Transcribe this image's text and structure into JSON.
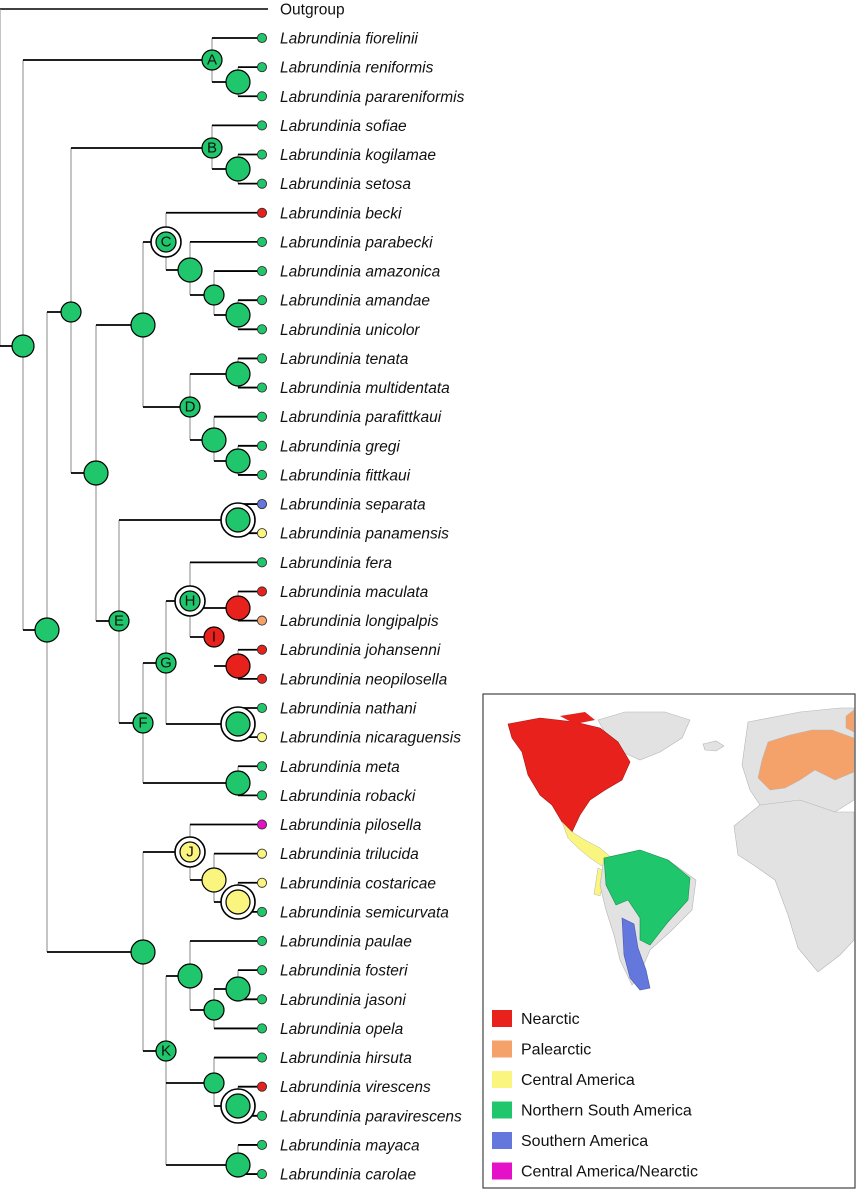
{
  "outgroup": "Outgroup",
  "taxa": [
    {
      "name": "Labrundinia fiorelinii",
      "region": "nsa"
    },
    {
      "name": "Labrundinia reniformis",
      "region": "nsa"
    },
    {
      "name": "Labrundinia parareniformis",
      "region": "nsa"
    },
    {
      "name": "Labrundinia sofiae",
      "region": "nsa"
    },
    {
      "name": "Labrundinia kogilamae",
      "region": "nsa"
    },
    {
      "name": "Labrundinia setosa",
      "region": "nsa"
    },
    {
      "name": "Labrundinia becki",
      "region": "nearctic"
    },
    {
      "name": "Labrundinia parabecki",
      "region": "nsa"
    },
    {
      "name": "Labrundinia amazonica",
      "region": "nsa"
    },
    {
      "name": "Labrundinia amandae",
      "region": "nsa"
    },
    {
      "name": "Labrundinia unicolor",
      "region": "nsa"
    },
    {
      "name": "Labrundinia tenata",
      "region": "nsa"
    },
    {
      "name": "Labrundinia multidentata",
      "region": "nsa"
    },
    {
      "name": "Labrundinia parafittkaui",
      "region": "nsa"
    },
    {
      "name": "Labrundinia gregi",
      "region": "nsa"
    },
    {
      "name": "Labrundinia fittkaui",
      "region": "nsa"
    },
    {
      "name": "Labrundinia separata",
      "region": "southern"
    },
    {
      "name": "Labrundinia panamensis",
      "region": "central"
    },
    {
      "name": "Labrundinia fera",
      "region": "nsa"
    },
    {
      "name": "Labrundinia maculata",
      "region": "nearctic"
    },
    {
      "name": "Labrundinia longipalpis",
      "region": "palearctic"
    },
    {
      "name": "Labrundinia johansenni",
      "region": "nearctic"
    },
    {
      "name": "Labrundinia neopilosella",
      "region": "nearctic"
    },
    {
      "name": "Labrundinia nathani",
      "region": "nsa"
    },
    {
      "name": "Labrundinia nicaraguensis",
      "region": "central"
    },
    {
      "name": "Labrundinia meta",
      "region": "nsa"
    },
    {
      "name": "Labrundinia robacki",
      "region": "nsa"
    },
    {
      "name": "Labrundinia pilosella",
      "region": "cana"
    },
    {
      "name": "Labrundinia trilucida",
      "region": "central"
    },
    {
      "name": "Labrundinia costaricae",
      "region": "central"
    },
    {
      "name": "Labrundinia semicurvata",
      "region": "nsa"
    },
    {
      "name": "Labrundinia paulae",
      "region": "nsa"
    },
    {
      "name": "Labrundinia fosteri",
      "region": "nsa"
    },
    {
      "name": "Labrundinia jasoni",
      "region": "nsa"
    },
    {
      "name": "Labrundinia opela",
      "region": "nsa"
    },
    {
      "name": "Labrundinia hirsuta",
      "region": "nsa"
    },
    {
      "name": "Labrundinia virescens",
      "region": "nearctic"
    },
    {
      "name": "Labrundinia paravirescens",
      "region": "nsa"
    },
    {
      "name": "Labrundinia mayaca",
      "region": "nsa"
    },
    {
      "name": "Labrundinia carolae",
      "region": "nsa"
    }
  ],
  "clade_labels": [
    "A",
    "B",
    "C",
    "D",
    "E",
    "F",
    "G",
    "H",
    "I",
    "J",
    "K"
  ],
  "legend": [
    {
      "key": "nearctic",
      "label": "Nearctic",
      "color": "#e8211d"
    },
    {
      "key": "palearctic",
      "label": "Palearctic",
      "color": "#f4a26a"
    },
    {
      "key": "central",
      "label": "Central America",
      "color": "#faf57f"
    },
    {
      "key": "nsa",
      "label": "Northern South America",
      "color": "#1fc66b"
    },
    {
      "key": "southern",
      "label": "Southern America",
      "color": "#6377dc"
    },
    {
      "key": "cana",
      "label": "Central America/Nearctic",
      "color": "#e511c8"
    }
  ]
}
